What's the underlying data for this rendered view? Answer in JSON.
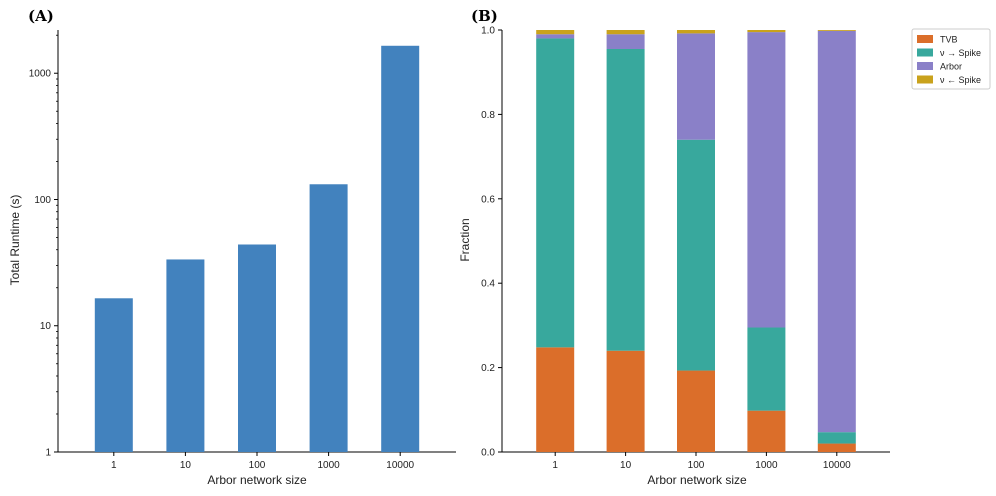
{
  "chart_data": [
    {
      "panel_label": "(A)",
      "type": "bar",
      "xlabel": "Arbor network size",
      "ylabel": "Total Runtime (s)",
      "yscale": "log",
      "ylim": [
        1,
        2200
      ],
      "yticks": [
        1,
        10,
        100,
        1000
      ],
      "ytick_labels": [
        "1",
        "10",
        "100",
        "1000"
      ],
      "categories": [
        "1",
        "10",
        "100",
        "1000",
        "10000"
      ],
      "values": [
        16.5,
        33.5,
        44,
        132,
        1650
      ],
      "color": "#4282be",
      "grid": false
    },
    {
      "panel_label": "(B)",
      "type": "bar",
      "stacked": true,
      "xlabel": "Arbor network size",
      "ylabel": "Fraction",
      "ylim": [
        0,
        1.0
      ],
      "yticks": [
        0.0,
        0.2,
        0.4,
        0.6,
        0.8,
        1.0
      ],
      "ytick_labels": [
        "0.0",
        "0.2",
        "0.4",
        "0.6",
        "0.8",
        "1.0"
      ],
      "categories": [
        "1",
        "10",
        "100",
        "1000",
        "10000"
      ],
      "series": [
        {
          "name": "TVB",
          "color": "#db6e2a",
          "values": [
            0.248,
            0.24,
            0.193,
            0.098,
            0.02
          ]
        },
        {
          "name": "ν → Spike",
          "color": "#38a89d",
          "values": [
            0.732,
            0.715,
            0.547,
            0.197,
            0.027
          ]
        },
        {
          "name": "Arbor",
          "color": "#8a80c8",
          "values": [
            0.01,
            0.035,
            0.252,
            0.7,
            0.951
          ]
        },
        {
          "name": "ν ← Spike",
          "color": "#c9a21c",
          "values": [
            0.01,
            0.01,
            0.008,
            0.005,
            0.002
          ]
        }
      ],
      "legend": "top-right, outside",
      "grid": false
    }
  ]
}
